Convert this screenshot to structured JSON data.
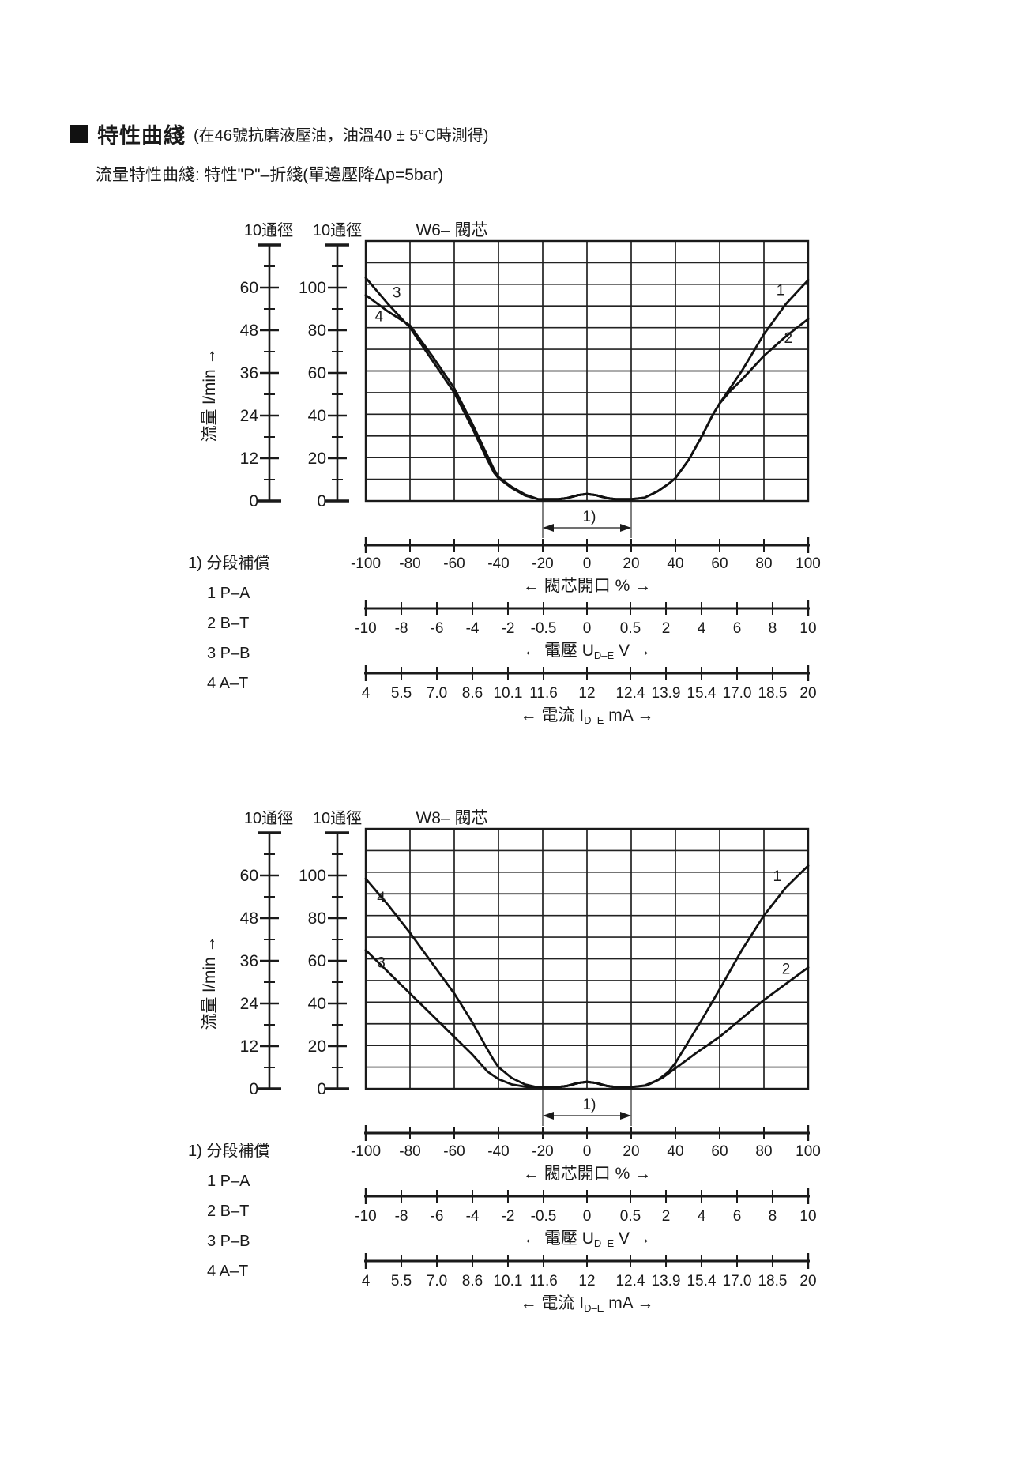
{
  "header": {
    "title": "特性曲綫",
    "note": "(在46號抗磨液壓油，油溫40 ± 5°C時測得)",
    "subtitle": "流量特性曲綫: 特性\"P\"–折綫(單邊壓降Δp=5bar)"
  },
  "flow_axis": {
    "label": "流量 l/min →",
    "scale1_header": "10通徑",
    "scale2_header": "10通徑",
    "scale1_ticks": [
      "60",
      "48",
      "36",
      "24",
      "12",
      "0"
    ],
    "scale2_ticks": [
      "100",
      "80",
      "60",
      "40",
      "20",
      "0"
    ]
  },
  "x_axes": {
    "opening": {
      "title": "← 閥芯開口 % →",
      "ticks": [
        "-100",
        "-80",
        "-60",
        "-40",
        "-20",
        "0",
        "20",
        "40",
        "60",
        "80",
        "100"
      ]
    },
    "voltage": {
      "title_pre": "← 電壓 U",
      "title_sub": "D–E",
      "title_post": " V →",
      "ticks": [
        "-10",
        "-8",
        "-6",
        "-4",
        "-2",
        "-0.5",
        "0",
        "0.5",
        "2",
        "4",
        "6",
        "8",
        "10"
      ]
    },
    "current": {
      "title_pre": "← 電流 I",
      "title_sub": "D–E",
      "title_post": " mA →",
      "ticks": [
        "4",
        "5.5",
        "7.0",
        "8.6",
        "10.1",
        "11.6",
        "12",
        "12.4",
        "13.9",
        "15.4",
        "17.0",
        "18.5",
        "20"
      ]
    }
  },
  "legend": {
    "note": "1) 分段補償",
    "items": [
      "1  P–A",
      "2  B–T",
      "3  P–B",
      "4  A–T"
    ]
  },
  "deadband_label": "1)",
  "chart_data": [
    {
      "type": "line",
      "title": "W6– 閥芯",
      "xlabel": "閥芯開口 %",
      "ylabel": "流量 l/min",
      "x_range": [
        -100,
        100
      ],
      "y_range_scale2": [
        0,
        120
      ],
      "deadband_percent": [
        -20,
        20
      ],
      "grid": {
        "cols": 10,
        "rows": 12
      },
      "series": [
        {
          "name": "1 P–A",
          "label": "1",
          "label_at": [
            87.5,
            95
          ],
          "points": [
            [
              -20,
              0.8
            ],
            [
              -13,
              0.8
            ],
            [
              -9,
              1.3
            ],
            [
              -4,
              2.7
            ],
            [
              0,
              3.2
            ],
            [
              4,
              2.7
            ],
            [
              9,
              1.3
            ],
            [
              13,
              0.8
            ],
            [
              20,
              0.8
            ],
            [
              26,
              1.5
            ],
            [
              32,
              4.5
            ],
            [
              37,
              8
            ],
            [
              40,
              10.5
            ],
            [
              46,
              19
            ],
            [
              52,
              30
            ],
            [
              57,
              40
            ],
            [
              60,
              45
            ],
            [
              70,
              60
            ],
            [
              80,
              77
            ],
            [
              90,
              91
            ],
            [
              100,
              102
            ]
          ]
        },
        {
          "name": "2 B–T",
          "label": "2",
          "label_at": [
            91,
            73
          ],
          "points": [
            [
              -20,
              0.8
            ],
            [
              -13,
              0.8
            ],
            [
              -9,
              1.3
            ],
            [
              -4,
              2.7
            ],
            [
              0,
              3.2
            ],
            [
              4,
              2.7
            ],
            [
              9,
              1.3
            ],
            [
              13,
              0.8
            ],
            [
              20,
              0.8
            ],
            [
              26,
              1.5
            ],
            [
              32,
              4.5
            ],
            [
              37,
              8
            ],
            [
              40,
              10.5
            ],
            [
              46,
              19
            ],
            [
              52,
              30
            ],
            [
              57,
              40
            ],
            [
              60,
              45
            ],
            [
              65,
              51
            ],
            [
              70,
              56
            ],
            [
              80,
              67
            ],
            [
              90,
              76
            ],
            [
              100,
              84
            ]
          ]
        },
        {
          "name": "3 P–B",
          "label": "3",
          "label_at": [
            -86,
            94
          ],
          "points": [
            [
              -100,
              103
            ],
            [
              -90,
              91
            ],
            [
              -80,
              80
            ],
            [
              -70,
              65
            ],
            [
              -60,
              50
            ],
            [
              -52,
              34
            ],
            [
              -46,
              21
            ],
            [
              -42,
              13
            ],
            [
              -40,
              10.5
            ],
            [
              -34,
              6
            ],
            [
              -28,
              2.5
            ],
            [
              -22,
              0.8
            ],
            [
              -13,
              0.8
            ],
            [
              -9,
              1.3
            ],
            [
              -4,
              2.7
            ],
            [
              0,
              3.2
            ],
            [
              4,
              2.7
            ],
            [
              9,
              1.3
            ],
            [
              13,
              0.8
            ],
            [
              20,
              0.8
            ]
          ]
        },
        {
          "name": "4 A–T",
          "label": "4",
          "label_at": [
            -94,
            83
          ],
          "points": [
            [
              -100,
              95
            ],
            [
              -90,
              87.5
            ],
            [
              -80,
              81
            ],
            [
              -70,
              67
            ],
            [
              -60,
              52
            ],
            [
              -52,
              36
            ],
            [
              -46,
              23
            ],
            [
              -42,
              14.5
            ],
            [
              -40,
              11
            ],
            [
              -34,
              6.5
            ],
            [
              -28,
              3
            ],
            [
              -22,
              0.8
            ],
            [
              -13,
              0.8
            ],
            [
              -9,
              1.3
            ],
            [
              -4,
              2.7
            ],
            [
              0,
              3.2
            ],
            [
              4,
              2.7
            ],
            [
              9,
              1.3
            ],
            [
              13,
              0.8
            ],
            [
              20,
              0.8
            ]
          ]
        }
      ]
    },
    {
      "type": "line",
      "title": "W8– 閥芯",
      "xlabel": "閥芯開口 %",
      "ylabel": "流量 l/min",
      "x_range": [
        -100,
        100
      ],
      "y_range_scale2": [
        0,
        120
      ],
      "deadband_percent": [
        -20,
        20
      ],
      "grid": {
        "cols": 10,
        "rows": 12
      },
      "series": [
        {
          "name": "1 P–A",
          "label": "1",
          "label_at": [
            86,
            96
          ],
          "points": [
            [
              -20,
              0.8
            ],
            [
              -13,
              0.8
            ],
            [
              -9,
              1.3
            ],
            [
              -4,
              2.7
            ],
            [
              0,
              3.2
            ],
            [
              4,
              2.7
            ],
            [
              9,
              1.3
            ],
            [
              13,
              0.8
            ],
            [
              20,
              0.8
            ],
            [
              26,
              1.5
            ],
            [
              32,
              4
            ],
            [
              37,
              8
            ],
            [
              40,
              12
            ],
            [
              46,
              22
            ],
            [
              52,
              32
            ],
            [
              60,
              46
            ],
            [
              70,
              64
            ],
            [
              80,
              80
            ],
            [
              90,
              93
            ],
            [
              100,
              103
            ]
          ]
        },
        {
          "name": "2 B–T",
          "label": "2",
          "label_at": [
            90,
            53
          ],
          "points": [
            [
              -20,
              0.8
            ],
            [
              -13,
              0.8
            ],
            [
              -9,
              1.3
            ],
            [
              -4,
              2.7
            ],
            [
              0,
              3.2
            ],
            [
              4,
              2.7
            ],
            [
              9,
              1.3
            ],
            [
              13,
              0.8
            ],
            [
              20,
              0.8
            ],
            [
              27,
              1.5
            ],
            [
              34,
              5
            ],
            [
              40,
              9.5
            ],
            [
              50,
              17
            ],
            [
              60,
              24
            ],
            [
              70,
              32.5
            ],
            [
              80,
              41
            ],
            [
              90,
              48.5
            ],
            [
              100,
              56
            ]
          ]
        },
        {
          "name": "3 P–B",
          "label": "3",
          "label_at": [
            -93,
            56
          ],
          "points": [
            [
              -100,
              64
            ],
            [
              -90,
              54
            ],
            [
              -80,
              44
            ],
            [
              -70,
              34
            ],
            [
              -60,
              24
            ],
            [
              -52,
              16
            ],
            [
              -45,
              8
            ],
            [
              -40,
              4.5
            ],
            [
              -34,
              2
            ],
            [
              -27,
              0.8
            ],
            [
              -13,
              0.8
            ],
            [
              -9,
              1.3
            ],
            [
              -4,
              2.7
            ],
            [
              0,
              3.2
            ],
            [
              4,
              2.7
            ],
            [
              9,
              1.3
            ],
            [
              13,
              0.8
            ],
            [
              20,
              0.8
            ]
          ]
        },
        {
          "name": "4 A–T",
          "label": "4",
          "label_at": [
            -93,
            86
          ],
          "points": [
            [
              -100,
              97
            ],
            [
              -90,
              85
            ],
            [
              -80,
              72
            ],
            [
              -70,
              58
            ],
            [
              -60,
              44
            ],
            [
              -52,
              31
            ],
            [
              -46,
              20
            ],
            [
              -42,
              13
            ],
            [
              -40,
              10
            ],
            [
              -34,
              5
            ],
            [
              -28,
              2
            ],
            [
              -23,
              0.8
            ],
            [
              -13,
              0.8
            ],
            [
              -9,
              1.3
            ],
            [
              -4,
              2.7
            ],
            [
              0,
              3.2
            ],
            [
              4,
              2.7
            ],
            [
              9,
              1.3
            ],
            [
              13,
              0.8
            ],
            [
              20,
              0.8
            ]
          ]
        }
      ]
    }
  ]
}
